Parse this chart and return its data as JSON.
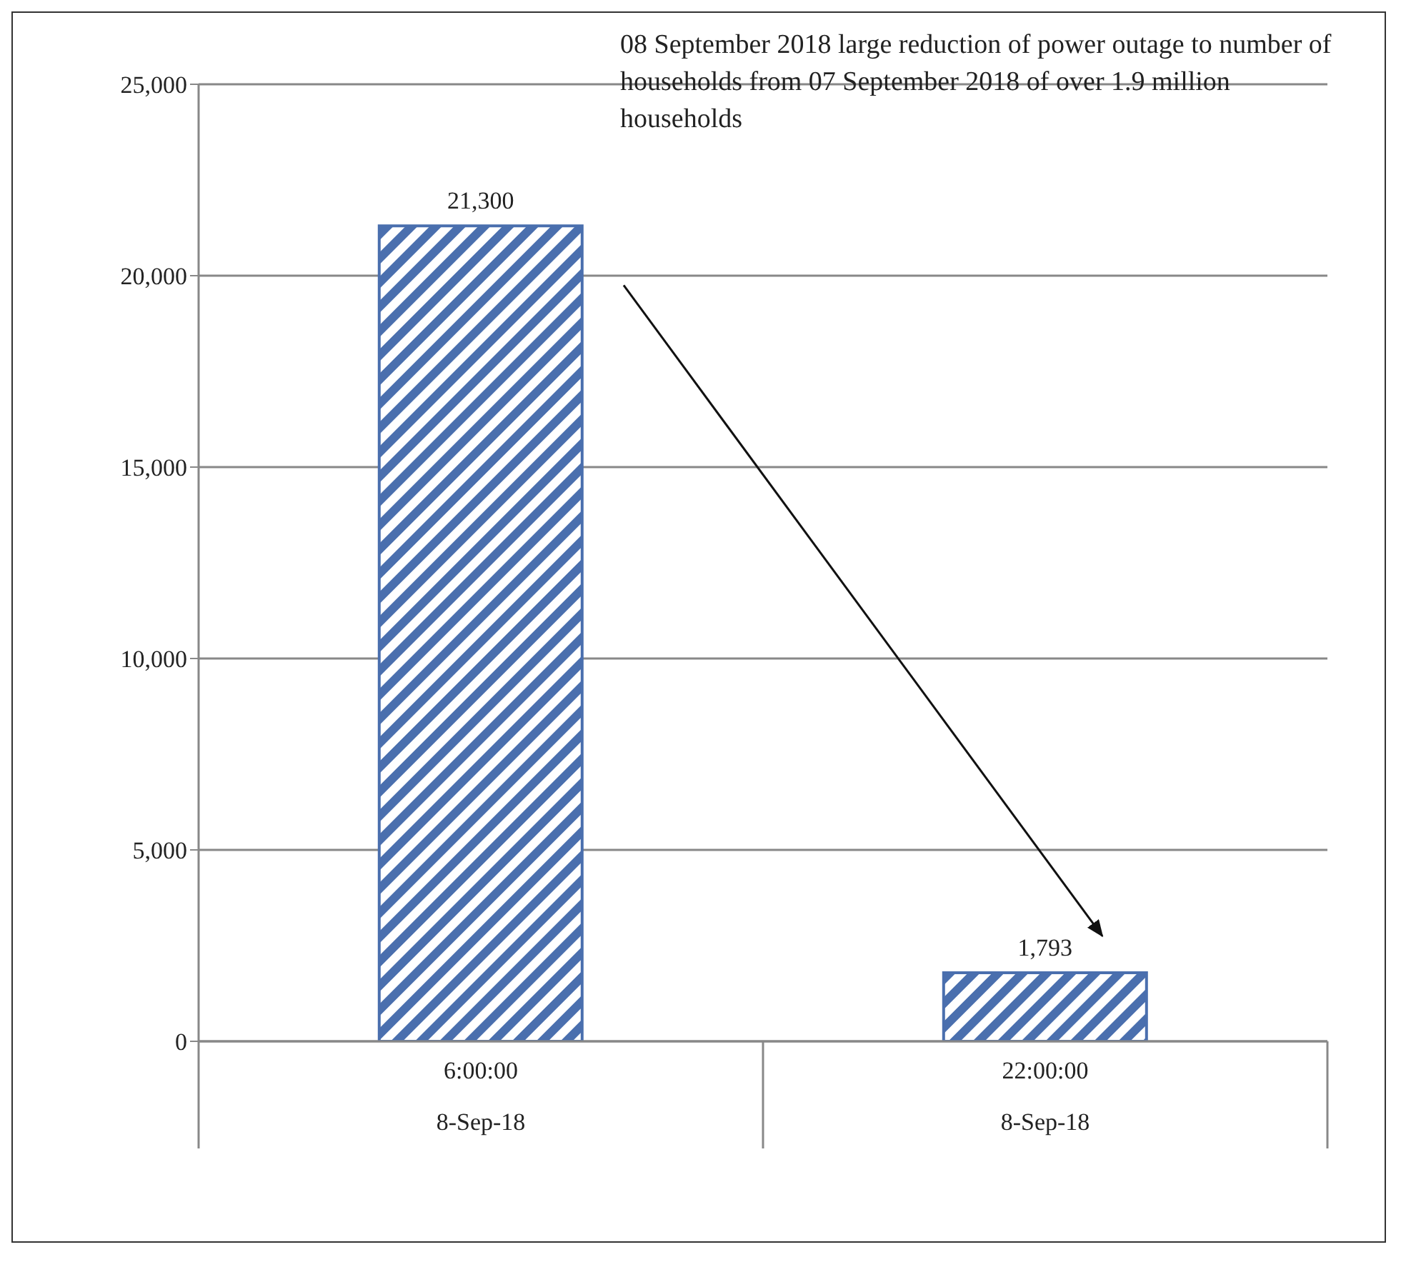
{
  "chart_data": {
    "type": "bar",
    "categories": [
      "6:00:00\n8-Sep-18",
      "22:00:00\n8-Sep-18"
    ],
    "values": [
      21300,
      1793
    ],
    "value_labels": [
      "21,300",
      "1,793"
    ],
    "color": "#4a6fae",
    "ylim": [
      0,
      25000
    ],
    "yticks": [
      0,
      {
        "value": 5000,
        "label": "5,000"
      },
      {
        "value": 10000,
        "label": "10,000"
      },
      {
        "value": 15000,
        "label": "15,000"
      },
      {
        "value": 20000,
        "label": "20,000"
      },
      {
        "value": 25000,
        "label": "25,000"
      }
    ],
    "grid": "y",
    "legend": false,
    "annotations": [
      "08 September 2018 large reduction of power outage to number of households from 07 September 2018 of over 1.9 million households"
    ]
  }
}
